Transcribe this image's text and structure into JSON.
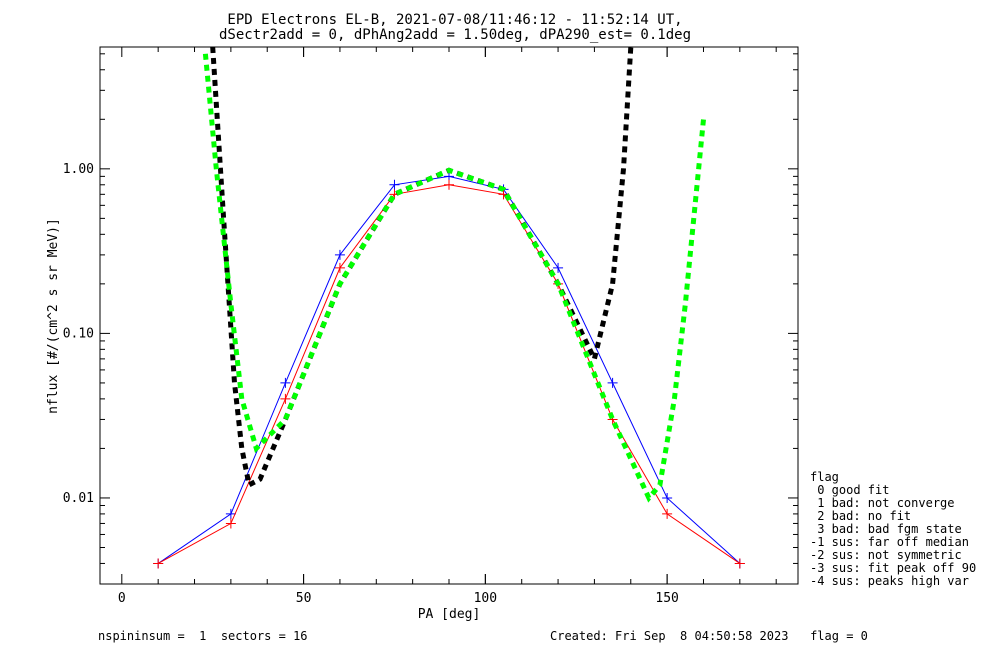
{
  "chart_data": {
    "type": "scatter",
    "title": "EPD Electrons EL-B, 2021-07-08/11:46:12 - 11:52:14 UT,",
    "subtitle": "dSectr2add = 0, dPhAng2add = 1.50deg, dPA290_est=   0.1deg",
    "xlabel": "PA [deg]",
    "ylabel": "nflux [#/(cm^2 s sr MeV)]",
    "xlim": [
      -6,
      186
    ],
    "ylim": [
      0.003,
      5.5
    ],
    "yscale": "log",
    "xticks": [
      0,
      50,
      100,
      150
    ],
    "yticks": [
      0.01,
      0.1,
      1.0
    ],
    "ytick_labels": [
      "0.01",
      "0.10",
      "1.00"
    ],
    "series": [
      {
        "color": "#0000ff",
        "style": "lines+plus",
        "x": [
          10,
          30,
          45,
          60,
          75,
          90,
          105,
          120,
          135,
          150,
          170
        ],
        "y": [
          0.004,
          0.008,
          0.05,
          0.3,
          0.8,
          0.9,
          0.75,
          0.25,
          0.05,
          0.01,
          0.004
        ]
      },
      {
        "color": "#ff0000",
        "style": "lines+plus",
        "x": [
          10,
          30,
          45,
          60,
          75,
          90,
          105,
          120,
          135,
          150,
          170
        ],
        "y": [
          0.004,
          0.007,
          0.04,
          0.25,
          0.7,
          0.8,
          0.7,
          0.2,
          0.03,
          0.008,
          0.004
        ]
      },
      {
        "color": "#000000",
        "style": "dotted-thick",
        "x": [
          25,
          28,
          31,
          33,
          35,
          38,
          45,
          60,
          75,
          90,
          105,
          120,
          130,
          135,
          138,
          140
        ],
        "y": [
          5.5,
          0.5,
          0.05,
          0.02,
          0.012,
          0.013,
          0.03,
          0.2,
          0.7,
          0.98,
          0.75,
          0.2,
          0.07,
          0.2,
          1.0,
          5.5
        ]
      },
      {
        "color": "#00ff00",
        "style": "dotted-thick",
        "x": [
          23,
          26,
          30,
          33,
          37,
          45,
          60,
          75,
          90,
          105,
          120,
          135,
          145,
          148,
          152,
          155,
          160
        ],
        "y": [
          5.0,
          1.0,
          0.15,
          0.04,
          0.02,
          0.03,
          0.2,
          0.7,
          0.98,
          0.75,
          0.2,
          0.03,
          0.01,
          0.012,
          0.04,
          0.15,
          2.0
        ]
      }
    ],
    "legend": {
      "placement": "right",
      "title": "flag",
      "entries": [
        " 0 good fit",
        " 1 bad: not converge",
        " 2 bad: no fit",
        " 3 bad: bad fgm state",
        "-1 sus: far off median",
        "-2 sus: not symmetric",
        "-3 sus: fit peak off 90",
        "-4 sus: peaks high var"
      ]
    }
  },
  "footer": {
    "left": "nspininsum =  1  sectors = 16",
    "right": "Created: Fri Sep  8 04:50:58 2023   flag = 0"
  },
  "colors": {
    "blue": "#0000ff",
    "red": "#ff0000",
    "black": "#000000",
    "green": "#00ff00"
  }
}
